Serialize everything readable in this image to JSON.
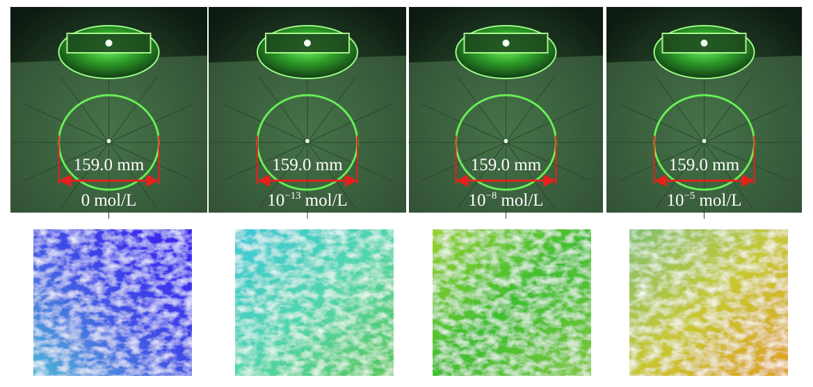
{
  "panels": [
    {
      "measurement": "159.0 mm",
      "concentration": {
        "base": "0",
        "unit": "mol/L"
      }
    },
    {
      "measurement": "159.0 mm",
      "concentration": {
        "base": "10",
        "exponent": "−13",
        "unit": "mol/L"
      }
    },
    {
      "measurement": "159.0 mm",
      "concentration": {
        "base": "10",
        "exponent": "−8",
        "unit": "mol/L"
      }
    },
    {
      "measurement": "159.0 mm",
      "concentration": {
        "base": "10",
        "exponent": "−5",
        "unit": "mol/L"
      }
    }
  ]
}
